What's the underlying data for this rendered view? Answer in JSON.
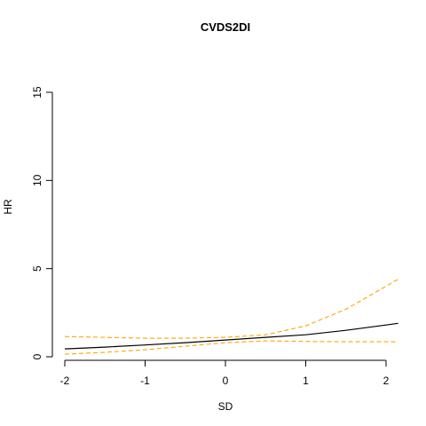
{
  "chart_data": {
    "type": "line",
    "title": "CVDS2DI",
    "xlabel": "SD",
    "ylabel": "HR",
    "xlim": [
      -2.2,
      2.2
    ],
    "ylim": [
      0,
      15
    ],
    "x_ticks": [
      -2,
      -1,
      0,
      1,
      2
    ],
    "y_ticks": [
      0,
      5,
      10,
      15
    ],
    "x_tick_labels": [
      "-2",
      "-1",
      "0",
      "1",
      "2"
    ],
    "y_tick_labels": [
      "0",
      "5",
      "10",
      "15"
    ],
    "grid": false,
    "legend": "none",
    "x": [
      -2.0,
      -1.5,
      -1.0,
      -0.5,
      0.0,
      0.5,
      1.0,
      1.5,
      2.0,
      2.15
    ],
    "series": [
      {
        "role": "estimate",
        "color": "#000000",
        "dash": "solid",
        "values": [
          0.45,
          0.55,
          0.67,
          0.8,
          0.95,
          1.1,
          1.25,
          1.5,
          1.8,
          1.9
        ]
      },
      {
        "role": "upper-ci",
        "color": "#FFA500",
        "dash": "dashed",
        "values": [
          1.15,
          1.1,
          1.05,
          1.05,
          1.1,
          1.25,
          1.75,
          2.7,
          4.0,
          4.4
        ]
      },
      {
        "role": "lower-ci",
        "color": "#FFA500",
        "dash": "dashed",
        "values": [
          0.15,
          0.25,
          0.4,
          0.6,
          0.8,
          0.9,
          0.87,
          0.85,
          0.85,
          0.85
        ]
      }
    ]
  }
}
